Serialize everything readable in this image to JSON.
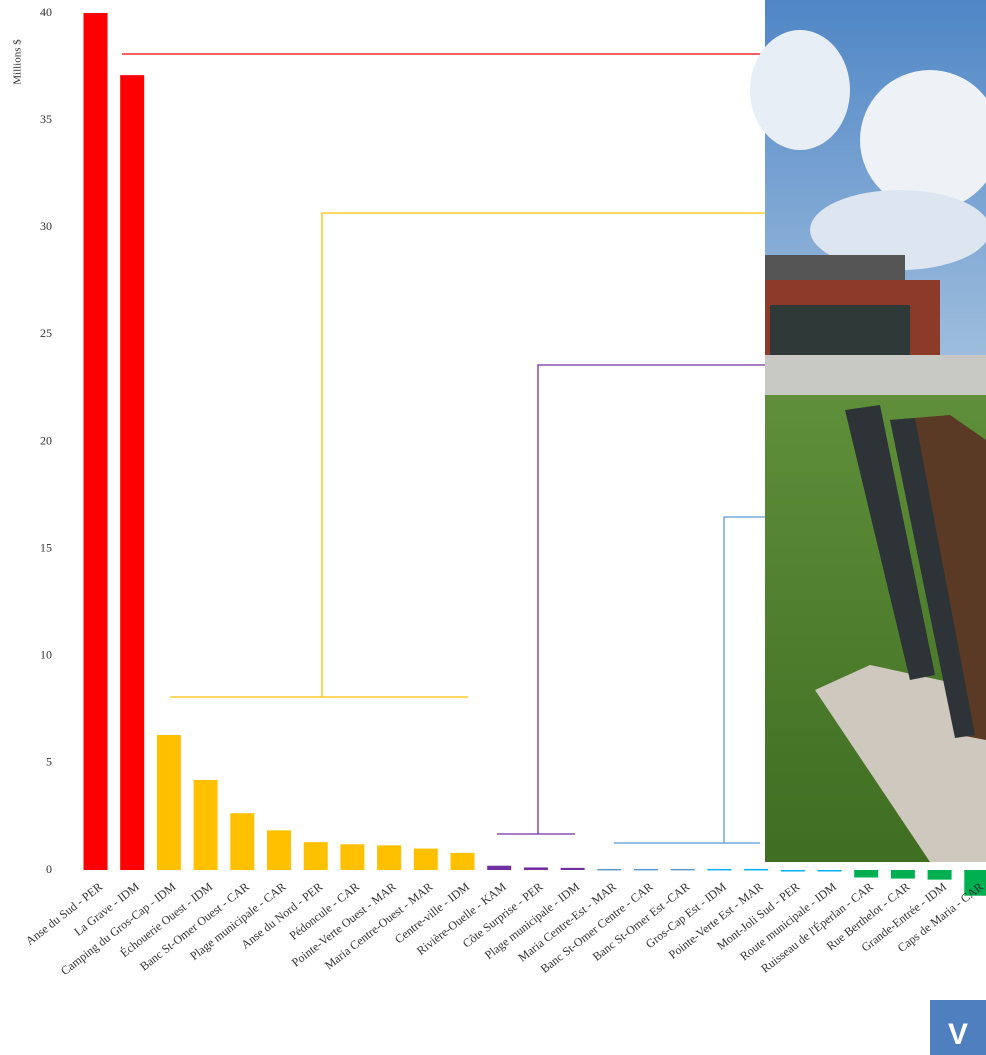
{
  "chart_data": {
    "type": "bar",
    "y_label": "Millions $",
    "categories": [
      "Anse du Sud - PER",
      "La Grave - IDM",
      "Camping du Gros-Cap - IDM",
      "Échouerie Ouest - IDM",
      "Banc St-Omer Ouest - CAR",
      "Plage municipale - CAR",
      "Anse du Nord - PER",
      "Pédoncule - CAR",
      "Pointe-Verte Ouest - MAR",
      "Maria Centre-Ouest - MAR",
      "Centre-ville - IDM",
      "Rivière-Ouelle - KAM",
      "Côte Surprise - PER",
      "Plage municipale - IDM",
      "Maria Centre-Est - MAR",
      "Banc St-Omer Centre - CAR",
      "Banc St-Omer Est -CAR",
      "Gros-Cap Est - IDM",
      "Pointe-Verte Est - MAR",
      "Mont-Joli Sud - PER",
      "Route municipale - IDM",
      "Ruisseau de l'Éperlan - CAR",
      "Rue Berthelot - CAR",
      "Grande-Entrée - IDM",
      "Caps de Maria - CAR"
    ],
    "values": [
      40,
      37.1,
      6.3,
      4.2,
      2.65,
      1.85,
      1.3,
      1.2,
      1.15,
      1.0,
      0.8,
      0.2,
      0.12,
      0.1,
      0.05,
      0.05,
      0.05,
      0.05,
      0.05,
      -0.05,
      -0.05,
      -0.35,
      -0.4,
      -0.45,
      -1.2
    ],
    "colors": [
      "#ff0000",
      "#ff0000",
      "#ffc000",
      "#ffc000",
      "#ffc000",
      "#ffc000",
      "#ffc000",
      "#ffc000",
      "#ffc000",
      "#ffc000",
      "#ffc000",
      "#7030a0",
      "#7030a0",
      "#7030a0",
      "#5b9bd5",
      "#5b9bd5",
      "#5b9bd5",
      "#00b0f0",
      "#00b0f0",
      "#00b0f0",
      "#00b0f0",
      "#00b050",
      "#00b050",
      "#00b050",
      "#00b050"
    ],
    "ylim": [
      0,
      40
    ],
    "yticks": [
      0,
      5,
      10,
      15,
      20,
      25,
      30,
      35,
      40
    ],
    "badge": "V"
  }
}
